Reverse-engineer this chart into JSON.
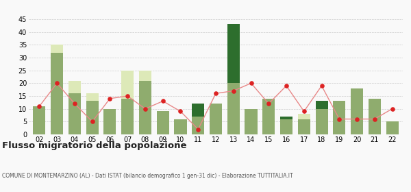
{
  "years": [
    "02",
    "03",
    "04",
    "05",
    "06",
    "07",
    "08",
    "09",
    "10",
    "11",
    "12",
    "13",
    "14",
    "15",
    "16",
    "17",
    "18",
    "19",
    "20",
    "21",
    "22"
  ],
  "iscritti_comuni": [
    11,
    32,
    16,
    13,
    10,
    14,
    21,
    9,
    6,
    7,
    12,
    20,
    10,
    14,
    6,
    6,
    10,
    13,
    18,
    14,
    5
  ],
  "iscritti_estero": [
    0,
    3,
    5,
    3,
    0,
    11,
    4,
    0,
    0,
    0,
    0,
    0,
    0,
    0,
    0,
    2,
    0,
    0,
    0,
    0,
    0
  ],
  "iscritti_altri": [
    0,
    0,
    0,
    0,
    0,
    0,
    0,
    0,
    0,
    5,
    0,
    23,
    0,
    0,
    1,
    0,
    3,
    0,
    0,
    0,
    0
  ],
  "cancellati": [
    11,
    20,
    12,
    5,
    14,
    15,
    10,
    13,
    9,
    2,
    16,
    17,
    20,
    12,
    19,
    9,
    19,
    6,
    6,
    6,
    10
  ],
  "color_comuni": "#8fac6e",
  "color_estero": "#dde9b8",
  "color_altri": "#2d6e2d",
  "color_cancellati": "#dd2222",
  "color_cancellati_line": "#e88888",
  "ylim": [
    0,
    45
  ],
  "yticks": [
    0,
    5,
    10,
    15,
    20,
    25,
    30,
    35,
    40,
    45
  ],
  "title": "Flusso migratorio della popolazione",
  "subtitle": "COMUNE DI MONTEMARZINO (AL) - Dati ISTAT (bilancio demografico 1 gen-31 dic) - Elaborazione TUTTITALIA.IT",
  "bg_color": "#f9f9f9",
  "grid_color": "#cccccc"
}
